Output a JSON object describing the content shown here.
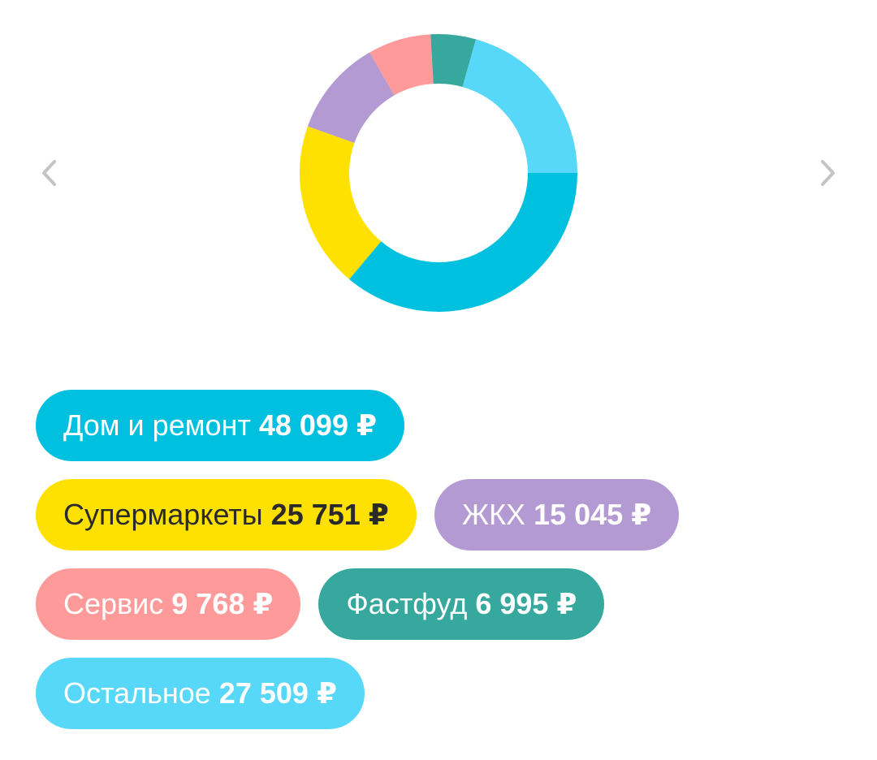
{
  "nav": {
    "prev_icon": "chevron-left-icon",
    "next_icon": "chevron-right-icon",
    "arrow_color": "#c4c4c4"
  },
  "chart_data": {
    "type": "pie",
    "donut": true,
    "title": "",
    "slices": [
      {
        "label": "Дом и ремонт",
        "amount": "48 099 ₽",
        "value": 48099,
        "color": "#00c0e0",
        "text_color": "#ffffff"
      },
      {
        "label": "Супермаркеты",
        "amount": "25 751 ₽",
        "value": 25751,
        "color": "#ffe100",
        "text_color": "#2a2a2a"
      },
      {
        "label": "ЖКХ",
        "amount": "15 045 ₽",
        "value": 15045,
        "color": "#b39ad3",
        "text_color": "#ffffff"
      },
      {
        "label": "Сервис",
        "amount": "9 768 ₽",
        "value": 9768,
        "color": "#ff9a9a",
        "text_color": "#ffffff"
      },
      {
        "label": "Фастфуд",
        "amount": "6 995 ₽",
        "value": 6995,
        "color": "#37a89e",
        "text_color": "#ffffff"
      },
      {
        "label": "Остальное",
        "amount": "27 509 ₽",
        "value": 27509,
        "color": "#58d8f8",
        "text_color": "#ffffff"
      }
    ]
  }
}
